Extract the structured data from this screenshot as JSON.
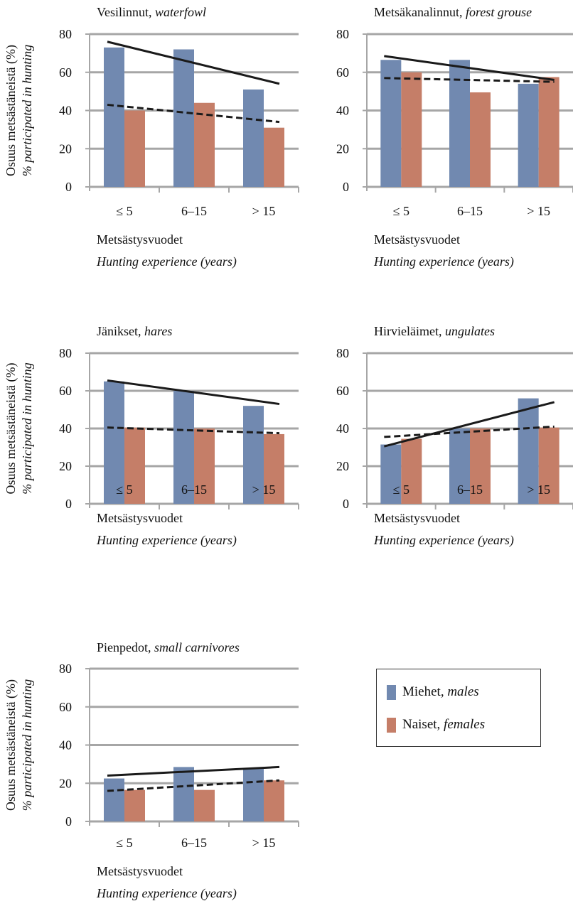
{
  "y_axis_label_fi": "Osuus metsästäneistä (%)",
  "y_axis_label_en": "% participated in hunting",
  "legend": {
    "males_fi": "Miehet,",
    "males_en": "males",
    "females_fi": "Naiset,",
    "females_en": "females"
  },
  "colors": {
    "males": "#7189b0",
    "females": "#c57e68",
    "grid": "#a6a6a6",
    "trend": "#1a1a1a"
  },
  "chart_data": [
    {
      "type": "bar",
      "title_fi": "Vesilinnut,",
      "title_en": "waterfowl",
      "categories": [
        "≤ 5",
        "6–15",
        "> 15"
      ],
      "xlabel_fi": "Metsästysvuodet",
      "xlabel_en": "Hunting experience (years)",
      "ylim": [
        0,
        80
      ],
      "yticks": [
        0,
        20,
        40,
        60,
        80
      ],
      "series": [
        {
          "name": "Miehet, males",
          "values": [
            73,
            72,
            51
          ]
        },
        {
          "name": "Naiset, females",
          "values": [
            40,
            44,
            31
          ]
        }
      ],
      "trend_solid": [
        76,
        54
      ],
      "trend_dashed": [
        43,
        34
      ]
    },
    {
      "type": "bar",
      "title_fi": "Metsäkanalinnut,",
      "title_en": "forest grouse",
      "categories": [
        "≤ 5",
        "6–15",
        "> 15"
      ],
      "xlabel_fi": "Metsästysvuodet",
      "xlabel_en": "Hunting experience (years)",
      "ylim": [
        0,
        80
      ],
      "yticks": [
        0,
        20,
        40,
        60,
        80
      ],
      "series": [
        {
          "name": "Miehet, males",
          "values": [
            66.5,
            66.5,
            54
          ]
        },
        {
          "name": "Naiset, females",
          "values": [
            60,
            49.5,
            57.5
          ]
        }
      ],
      "trend_solid": [
        68.5,
        56
      ],
      "trend_dashed": [
        57,
        55
      ]
    },
    {
      "type": "bar",
      "title_fi": "Jänikset,",
      "title_en": "hares",
      "categories": [
        "≤ 5",
        "6–15",
        "> 15"
      ],
      "xlabel_fi": "Metsästysvuodet",
      "xlabel_en": "Hunting experience (years)",
      "ylim": [
        0,
        80
      ],
      "yticks": [
        0,
        20,
        40,
        60,
        80
      ],
      "series": [
        {
          "name": "Miehet, males",
          "values": [
            65,
            60,
            52
          ]
        },
        {
          "name": "Naiset, females",
          "values": [
            40.5,
            40,
            37
          ]
        }
      ],
      "trend_solid": [
        65.5,
        53
      ],
      "trend_dashed": [
        40.5,
        37.5
      ]
    },
    {
      "type": "bar",
      "title_fi": "Hirvieläimet,",
      "title_en": "ungulates",
      "categories": [
        "≤ 5",
        "6–15",
        "> 15"
      ],
      "xlabel_fi": "Metsästysvuodet",
      "xlabel_en": "Hunting experience (years)",
      "ylim": [
        0,
        80
      ],
      "yticks": [
        0,
        20,
        40,
        60,
        80
      ],
      "series": [
        {
          "name": "Miehet, males",
          "values": [
            31.5,
            40,
            56
          ]
        },
        {
          "name": "Naiset, females",
          "values": [
            34.5,
            40,
            40.5
          ]
        }
      ],
      "trend_solid": [
        30.5,
        54
      ],
      "trend_dashed": [
        35.5,
        41
      ]
    },
    {
      "type": "bar",
      "title_fi": "Pienpedot,",
      "title_en": "small carnivores",
      "categories": [
        "≤ 5",
        "6–15",
        "> 15"
      ],
      "xlabel_fi": "Metsästysvuodet",
      "xlabel_en": "Hunting experience (years)",
      "ylim": [
        0,
        80
      ],
      "yticks": [
        0,
        20,
        40,
        60,
        80
      ],
      "series": [
        {
          "name": "Miehet, males",
          "values": [
            22.5,
            28.5,
            27.5
          ]
        },
        {
          "name": "Naiset, females",
          "values": [
            16.5,
            16.5,
            21.5
          ]
        }
      ],
      "trend_solid": [
        24,
        28.5
      ],
      "trend_dashed": [
        16,
        21.5
      ]
    }
  ]
}
